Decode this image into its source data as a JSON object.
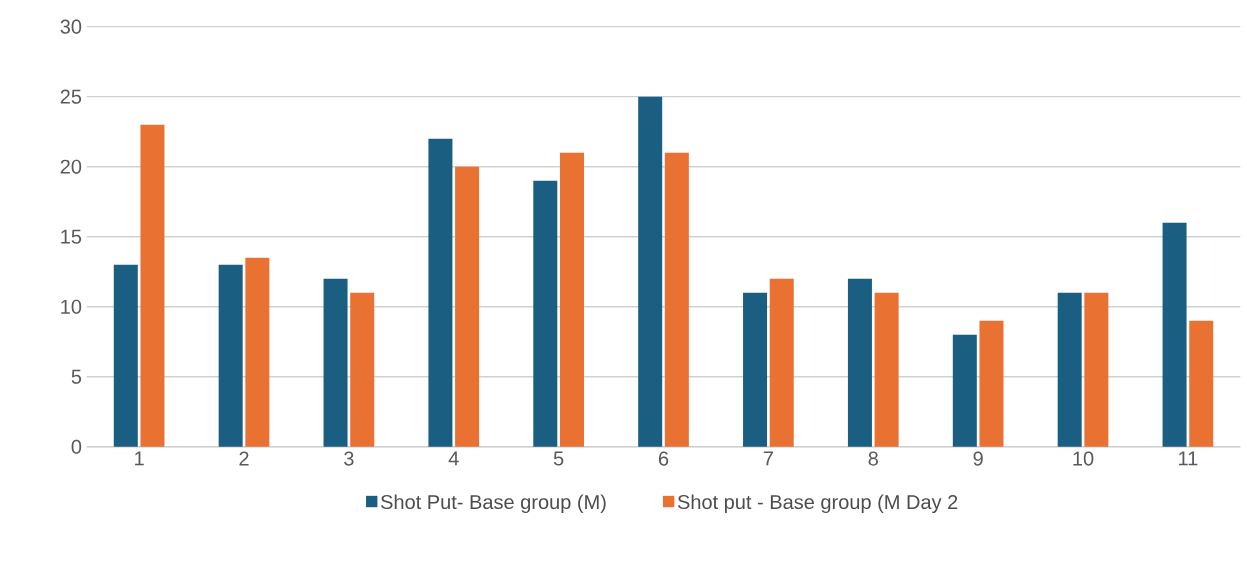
{
  "chart_data": {
    "type": "bar",
    "categories": [
      "1",
      "2",
      "3",
      "4",
      "5",
      "6",
      "7",
      "8",
      "9",
      "10",
      "11"
    ],
    "series": [
      {
        "name": "Shot Put- Base group (M)",
        "color": "#1a5e82",
        "values": [
          13,
          13,
          12,
          22,
          19,
          25,
          11,
          12,
          8,
          11,
          16
        ]
      },
      {
        "name": "Shot put - Base group (M Day 2",
        "color": "#e97132",
        "values": [
          23,
          13.5,
          11,
          20,
          21,
          21,
          12,
          11,
          9,
          11,
          9
        ]
      }
    ],
    "ylim": [
      0,
      30
    ],
    "yticks": [
      0,
      5,
      10,
      15,
      20,
      25,
      30
    ],
    "grid": "y",
    "legend": "bottom"
  }
}
